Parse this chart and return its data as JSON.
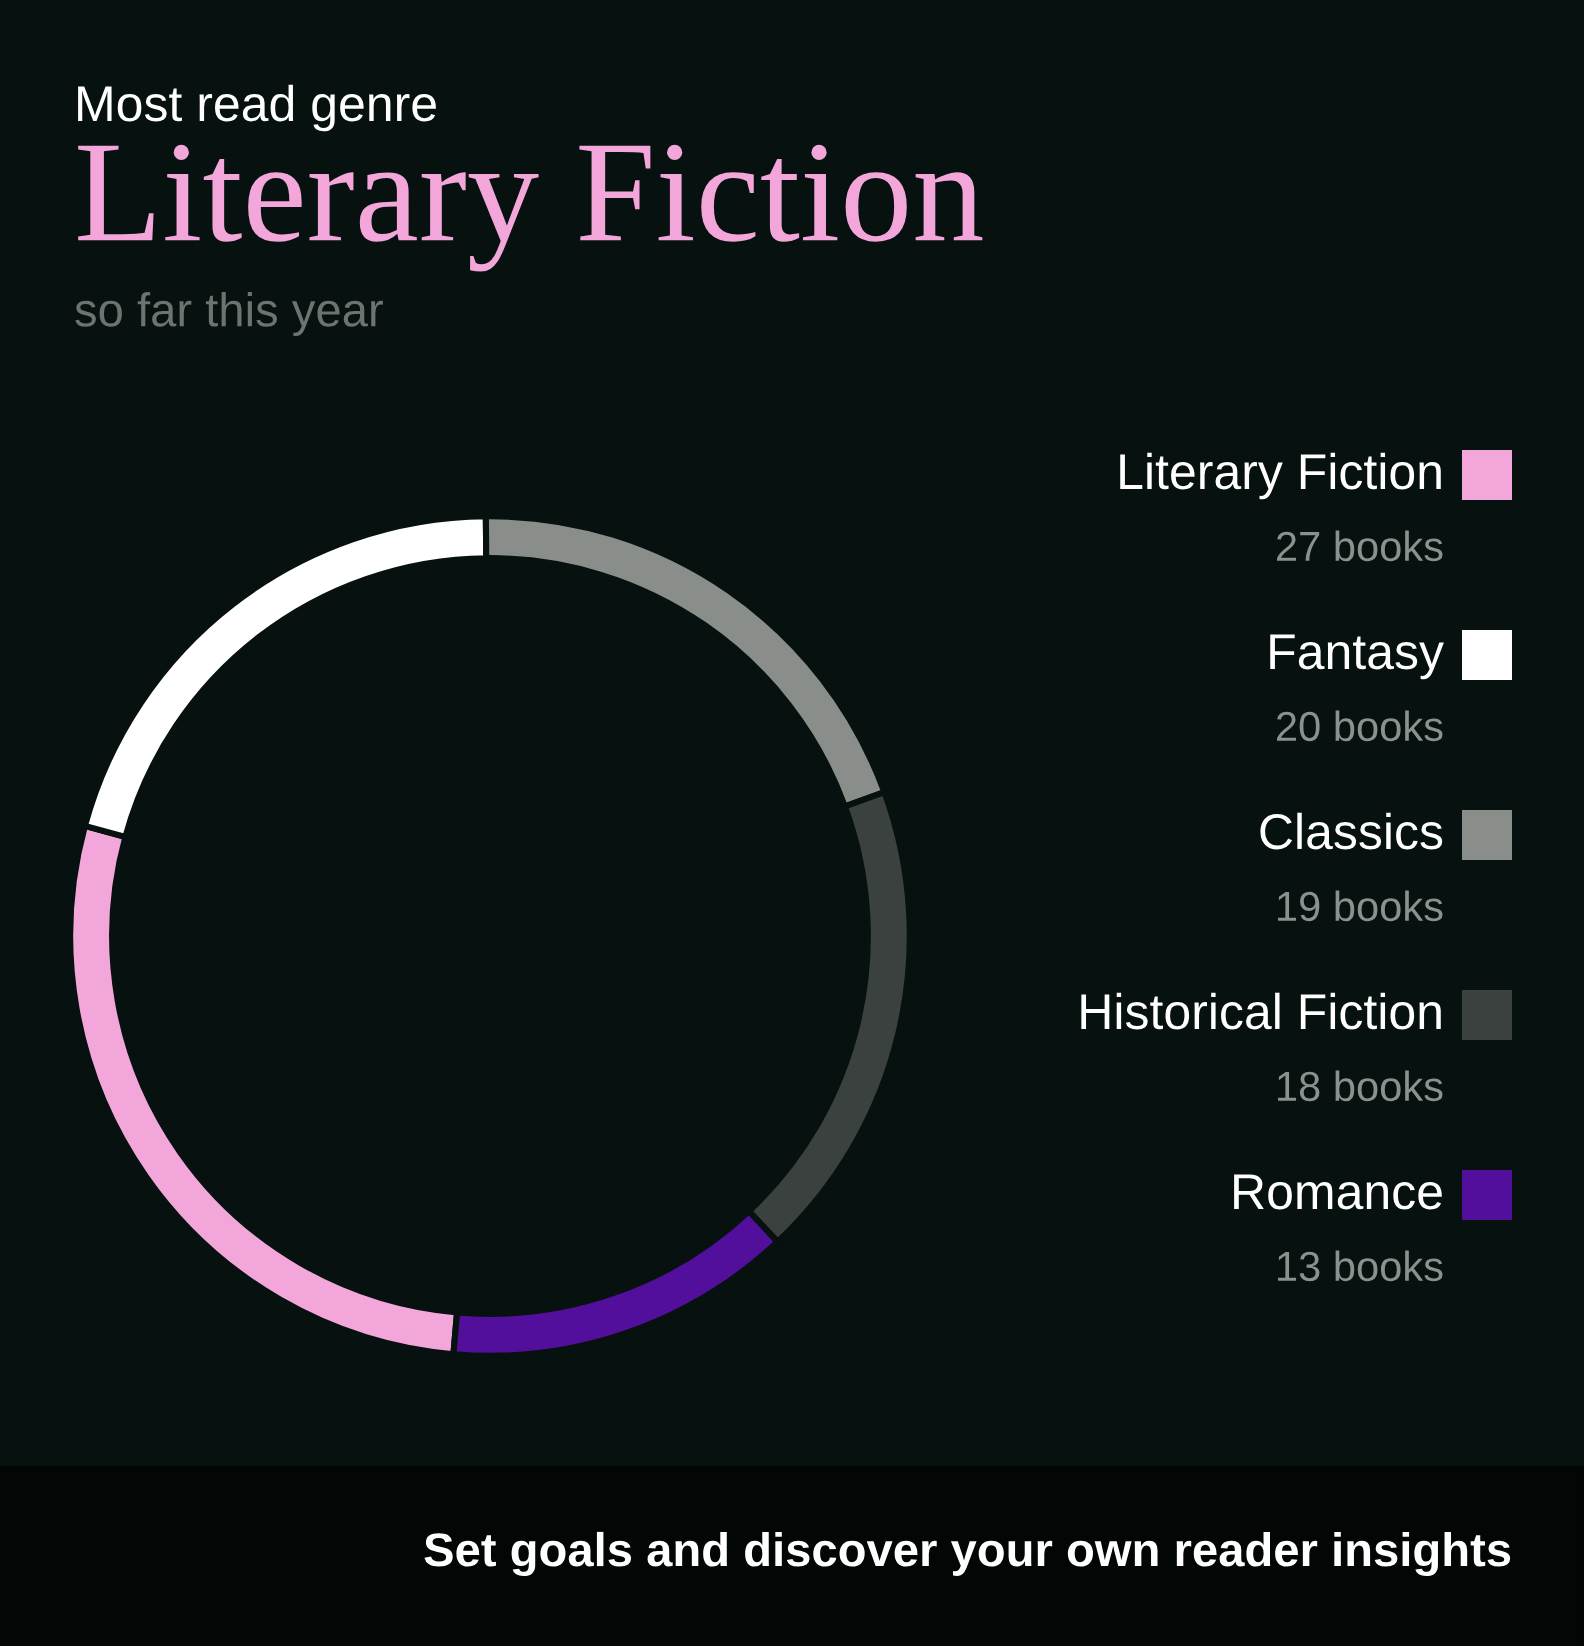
{
  "chart_data": {
    "type": "donut",
    "title": "Literary Fiction",
    "subtitle": "so far this year",
    "annotations": [
      "Most read genre",
      "Set goals and discover your own reader insights"
    ],
    "categories": [
      "Literary Fiction",
      "Fantasy",
      "Classics",
      "Historical Fiction",
      "Romance"
    ],
    "values": [
      27,
      20,
      19,
      18,
      13
    ],
    "value_labels": [
      "27 books",
      "20 books",
      "19 books",
      "18 books",
      "13 books"
    ],
    "colors": [
      "#f2a6d9",
      "#ffffff",
      "#898e8b",
      "#3b413e",
      "#520f9c"
    ],
    "legend": "right"
  }
}
